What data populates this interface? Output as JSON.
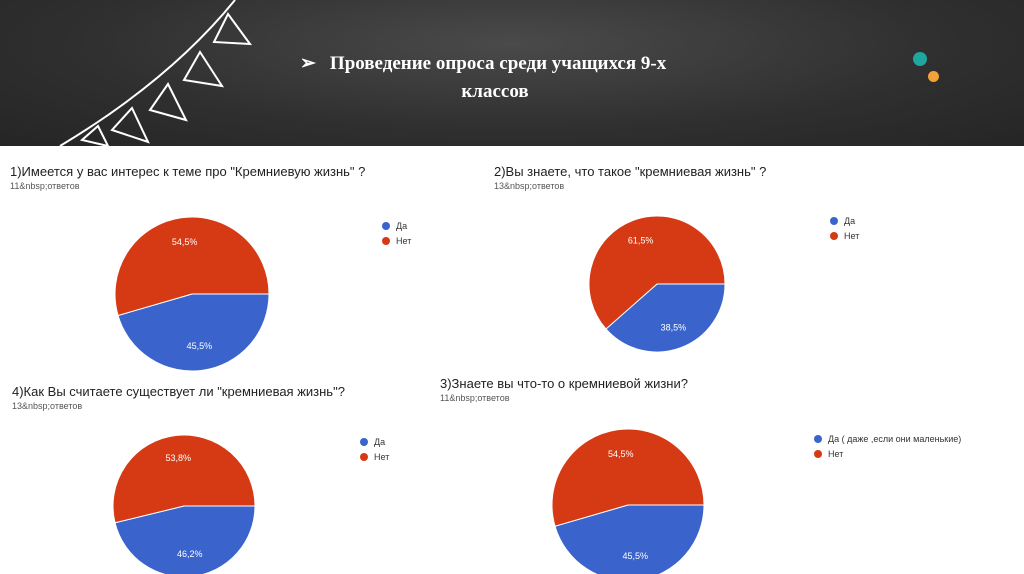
{
  "slide": {
    "title_arrow": "➢",
    "title_line1": "Проведение опроса среди учащихся 9-х",
    "title_line2": "классов",
    "accent_colors": [
      "#1fa6a0",
      "#f3a13b"
    ]
  },
  "colors": {
    "yes": "#3a64cc",
    "no": "#d63a14"
  },
  "chart_data": [
    {
      "type": "pie",
      "title": "1)Имеется у вас интерес к теме про \"Кремниевую жизнь\" ?",
      "subtitle": "11&nbsp;ответов",
      "legend": [
        "Да",
        "Нет"
      ],
      "values": [
        45.5,
        54.5
      ],
      "labels": [
        "45,5%",
        "54,5%"
      ],
      "legend_position": "right"
    },
    {
      "type": "pie",
      "title": "2)Вы знаете, что такое \"кремниевая жизнь\" ?",
      "subtitle": "13&nbsp;ответов",
      "legend": [
        "Да",
        "Нет"
      ],
      "values": [
        38.5,
        61.5
      ],
      "labels": [
        "38,5%",
        "61,5%"
      ],
      "legend_position": "right"
    },
    {
      "type": "pie",
      "title": "4)Как Вы считаете существует ли \"кремниевая жизнь\"?",
      "subtitle": "13&nbsp;ответов",
      "legend": [
        "Да",
        "Нет"
      ],
      "values": [
        46.2,
        53.8
      ],
      "labels": [
        "46,2%",
        "53,8%"
      ],
      "legend_position": "right"
    },
    {
      "type": "pie",
      "title": "3)Знаете вы что-то о кремниевой жизни?",
      "subtitle": "11&nbsp;ответов",
      "legend": [
        "Да ( даже ,если они маленькие)",
        "Нет"
      ],
      "values": [
        45.5,
        54.5
      ],
      "labels": [
        "45,5%",
        "54,5%"
      ],
      "legend_position": "right"
    }
  ]
}
